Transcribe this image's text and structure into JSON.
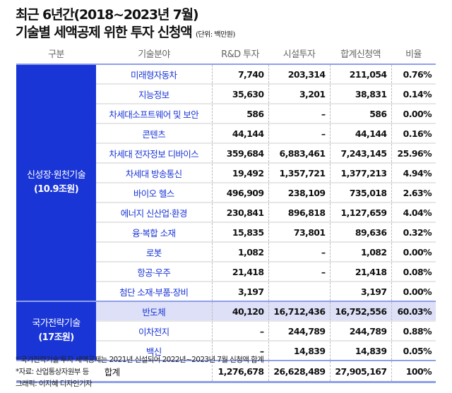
{
  "title_line1": "최근 6년간(2018~2023년 7월)",
  "title_line2": "기술별 세액공제 위한 투자 신청액",
  "unit": "(단위: 백만원)",
  "headers": [
    "구분",
    "기술분야",
    "R&D 투자",
    "시설투자",
    "합계신청액",
    "비율"
  ],
  "groups": [
    {
      "label": "신성장·원천기술",
      "sub": "(10.9조원)",
      "rows": [
        [
          "미래형자동차",
          "7,740",
          "203,314",
          "211,054",
          "0.76%"
        ],
        [
          "지능정보",
          "35,630",
          "3,201",
          "38,831",
          "0.14%"
        ],
        [
          "차세대소프트웨어 및 보안",
          "586",
          "–",
          "586",
          "0.00%"
        ],
        [
          "콘텐츠",
          "44,144",
          "–",
          "44,144",
          "0.16%"
        ],
        [
          "차세대 전자정보 디바이스",
          "359,684",
          "6,883,461",
          "7,243,145",
          "25.96%"
        ],
        [
          "차세대 방송통신",
          "19,492",
          "1,357,721",
          "1,377,213",
          "4.94%"
        ],
        [
          "바이오 헬스",
          "496,909",
          "238,109",
          "735,018",
          "2.63%"
        ],
        [
          "에너지 신산업·환경",
          "230,841",
          "896,818",
          "1,127,659",
          "4.04%"
        ],
        [
          "융·복합 소재",
          "15,835",
          "73,801",
          "89,636",
          "0.32%"
        ],
        [
          "로봇",
          "1,082",
          "–",
          "1,082",
          "0.00%"
        ],
        [
          "항공·우주",
          "21,418",
          "–",
          "21,418",
          "0.08%"
        ],
        [
          "첨단 소재·부품·장비",
          "3,197",
          "",
          "3,197",
          "0.00%"
        ]
      ]
    },
    {
      "label": "국가전략기술",
      "sub": "(17조원)",
      "rows": [
        [
          "반도체",
          "40,120",
          "16,712,436",
          "16,752,556",
          "60.03%"
        ],
        [
          "이차전지",
          "–",
          "244,789",
          "244,789",
          "0.88%"
        ],
        [
          "백신",
          "–",
          "14,839",
          "14,839",
          "0.05%"
        ]
      ]
    }
  ],
  "total": [
    "합계",
    "1,276,678",
    "26,628,489",
    "27,905,167",
    "100%"
  ],
  "notes": [
    "*'국가전략기술'투자 세액공제는 2021년 신설되어 2022년~2023년 7월 신청액 합계",
    "*자료: 산업통상자원부 등",
    "그래픽: 이지혜 디자인기자"
  ],
  "colors": {
    "accent": "#1a35d6",
    "highlight": "#dde0f7",
    "rule": "#8fa0e8"
  }
}
